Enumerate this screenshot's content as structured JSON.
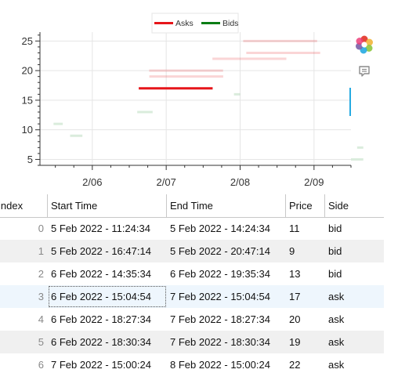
{
  "chart_data": {
    "type": "segment",
    "x_ticks": [
      "2/06",
      "2/07",
      "2/08",
      "2/09"
    ],
    "y_ticks": [
      5,
      10,
      15,
      20,
      25
    ],
    "ylim": [
      4,
      26.5
    ],
    "legend": {
      "placement": "top-center",
      "items": [
        {
          "label": "Asks",
          "color": "#e6151a"
        },
        {
          "label": "Bids",
          "color": "#0a7d14"
        }
      ]
    },
    "series": [
      {
        "name": "Asks",
        "color": "#e6151a",
        "segments": [
          {
            "start": "2022-02-06 15:04:54",
            "end": "2022-02-07 15:04:54",
            "price": 17,
            "alpha": 1.0
          },
          {
            "start": "2022-02-06 18:27:34",
            "end": "2022-02-07 18:27:34",
            "price": 20,
            "alpha": 0.18
          },
          {
            "start": "2022-02-06 18:30:34",
            "end": "2022-02-07 18:30:34",
            "price": 19,
            "alpha": 0.18
          },
          {
            "start": "2022-02-07 15:00:24",
            "end": "2022-02-08 15:00:24",
            "price": 22,
            "alpha": 0.18
          },
          {
            "start": "2022-02-08 01:00:00",
            "end": "2022-02-09 01:00:00",
            "price": 25,
            "alpha": 0.18
          },
          {
            "start": "2022-02-08 02:00:00",
            "end": "2022-02-09 02:00:00",
            "price": 23,
            "alpha": 0.18
          }
        ]
      },
      {
        "name": "Bids",
        "color": "#0a7d14",
        "segments": [
          {
            "start": "2022-02-05 11:24:34",
            "end": "2022-02-05 14:24:34",
            "price": 11,
            "alpha": 0.15
          },
          {
            "start": "2022-02-05 16:47:14",
            "end": "2022-02-05 20:47:14",
            "price": 9,
            "alpha": 0.15
          },
          {
            "start": "2022-02-06 14:35:34",
            "end": "2022-02-06 19:35:34",
            "price": 13,
            "alpha": 0.15
          },
          {
            "start": "2022-02-07 22:00:00",
            "end": "2022-02-08 00:00:00",
            "price": 16,
            "alpha": 0.15
          },
          {
            "start": "2022-02-09 12:00:00",
            "end": "2022-02-09 16:00:00",
            "price": 5,
            "alpha": 0.15
          },
          {
            "start": "2022-02-09 14:00:00",
            "end": "2022-02-09 16:00:00",
            "price": 7,
            "alpha": 0.15
          }
        ]
      }
    ]
  },
  "table": {
    "columns": [
      "index",
      "Start Time",
      "End Time",
      "Price",
      "Side"
    ],
    "selected_row": 3,
    "rows": [
      {
        "index": "0",
        "start": "5 Feb 2022 - 11:24:34",
        "end": "5 Feb 2022 - 14:24:34",
        "price": "11",
        "side": "bid"
      },
      {
        "index": "1",
        "start": "5 Feb 2022 - 16:47:14",
        "end": "5 Feb 2022 - 20:47:14",
        "price": "9",
        "side": "bid"
      },
      {
        "index": "2",
        "start": "6 Feb 2022 - 14:35:34",
        "end": "6 Feb 2022 - 19:35:34",
        "price": "13",
        "side": "bid"
      },
      {
        "index": "3",
        "start": "6 Feb 2022 - 15:04:54",
        "end": "7 Feb 2022 - 15:04:54",
        "price": "17",
        "side": "ask"
      },
      {
        "index": "4",
        "start": "6 Feb 2022 - 18:27:34",
        "end": "7 Feb 2022 - 18:27:34",
        "price": "20",
        "side": "ask"
      },
      {
        "index": "5",
        "start": "6 Feb 2022 - 18:30:34",
        "end": "7 Feb 2022 - 18:30:34",
        "price": "19",
        "side": "ask"
      },
      {
        "index": "6",
        "start": "7 Feb 2022 - 15:00:24",
        "end": "8 Feb 2022 - 15:00:24",
        "price": "22",
        "side": "ask"
      }
    ]
  },
  "toolbar": {
    "icons": [
      "bokeh-logo-icon",
      "hover-tool-icon"
    ]
  }
}
